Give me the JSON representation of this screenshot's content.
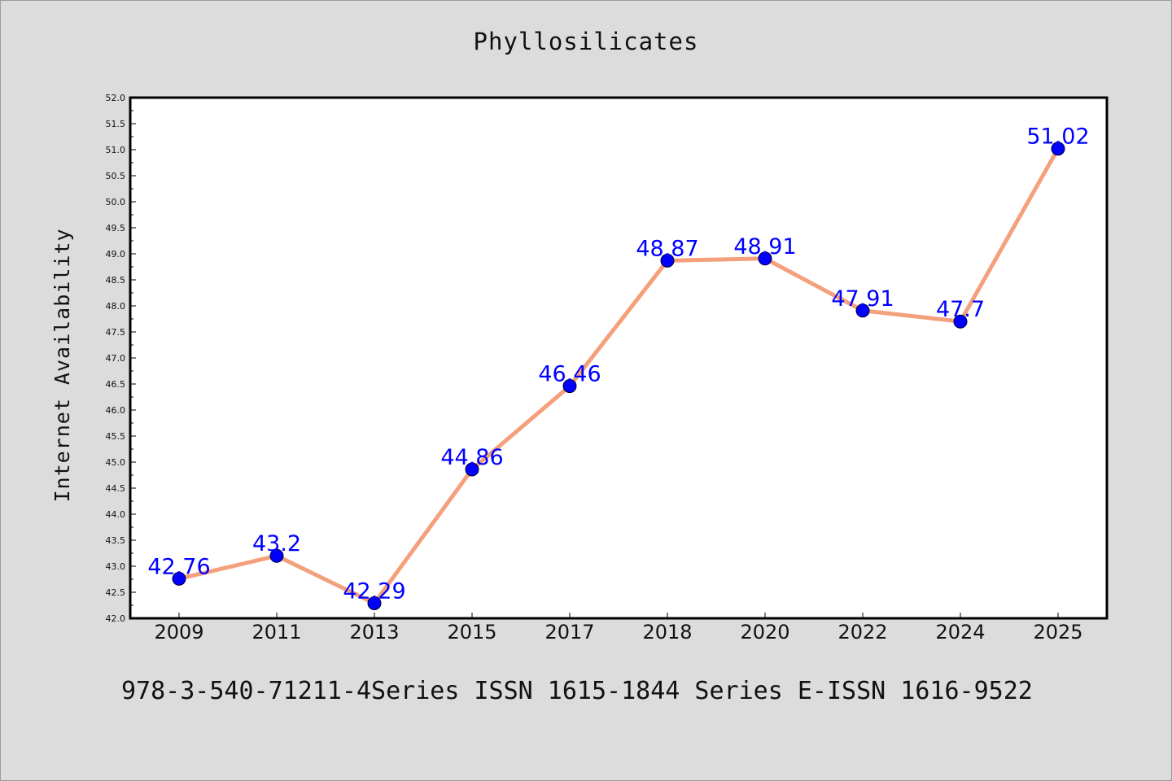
{
  "title": "Phyllosilicates",
  "footer": "978-3-540-71211-4Series ISSN 1615-1844 Series E-ISSN 1616-9522",
  "colors": {
    "background": "#dcdcdc",
    "plot_background": "#ffffff",
    "line": "#f5a07c",
    "marker": "#0000ff",
    "data_label": "#0000ff"
  },
  "chart_data": {
    "type": "line",
    "title": "Phyllosilicates",
    "xlabel": "",
    "ylabel": "Internet Availability",
    "categories": [
      "2009",
      "2011",
      "2013",
      "2015",
      "2017",
      "2018",
      "2020",
      "2022",
      "2024",
      "2025"
    ],
    "values": [
      42.76,
      43.2,
      42.29,
      44.86,
      46.46,
      48.87,
      48.91,
      47.91,
      47.7,
      51.02
    ],
    "data_labels": [
      "42.76",
      "43.2",
      "42.29",
      "44.86",
      "46.46",
      "48.87",
      "48.91",
      "47.91",
      "47.7",
      "51.02"
    ],
    "ylim": [
      42.0,
      52.0
    ],
    "yticks": [
      "42.0",
      "42.5",
      "43.0",
      "43.5",
      "44.0",
      "44.5",
      "45.0",
      "45.5",
      "46.0",
      "46.5",
      "47.0",
      "47.5",
      "48.0",
      "48.5",
      "49.0",
      "49.5",
      "50.0",
      "50.5",
      "51.0",
      "51.5",
      "52.0"
    ],
    "grid": false,
    "legend": "none"
  }
}
